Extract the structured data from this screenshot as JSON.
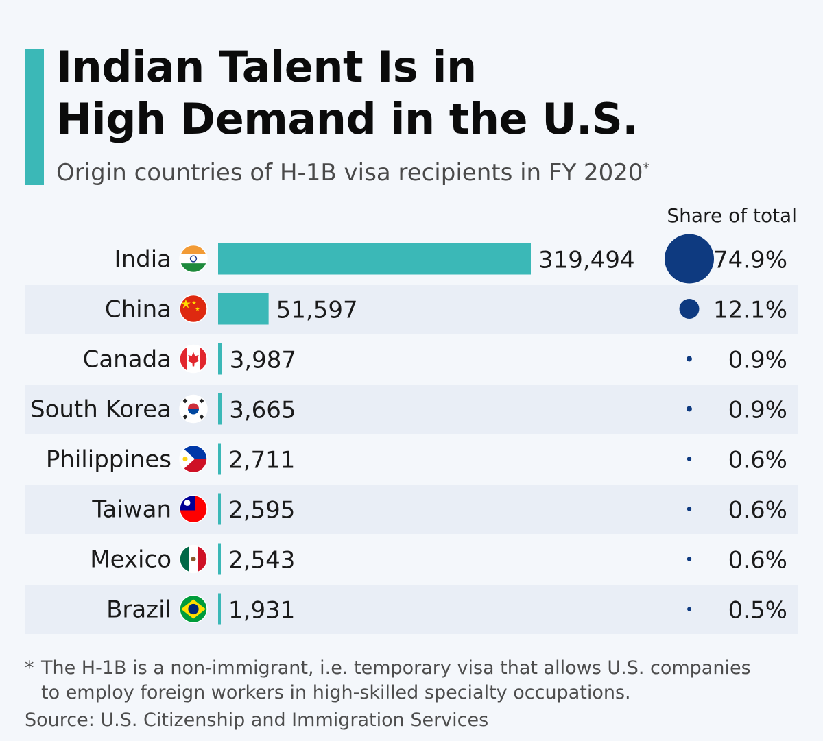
{
  "title_line1": "Indian Talent Is in",
  "title_line2": "High Demand in the U.S.",
  "subtitle": "Origin countries of H-1B visa recipients in FY 2020",
  "subtitle_mark": "*",
  "share_header": "Share of total",
  "footnote_star": "*",
  "footnote_line1": "The H-1B is a non-immigrant, i.e. temporary visa that allows U.S. companies",
  "footnote_line2": "to employ foreign workers in high-skilled specialty occupations.",
  "source": "Source: U.S. Citizenship and Immigration Services",
  "colors": {
    "accent": "#3bb8b7",
    "bar": "#3bb8b7",
    "bubble": "#0e3a80",
    "stripe": "#e9eef6"
  },
  "chart_data": {
    "type": "bar",
    "orientation": "horizontal",
    "title": "Indian Talent Is in High Demand in the U.S.",
    "subtitle": "Origin countries of H-1B visa recipients in FY 2020",
    "categories": [
      "India",
      "China",
      "Canada",
      "South Korea",
      "Philippines",
      "Taiwan",
      "Mexico",
      "Brazil"
    ],
    "flags": [
      "india-flag-icon",
      "china-flag-icon",
      "canada-flag-icon",
      "south-korea-flag-icon",
      "philippines-flag-icon",
      "taiwan-flag-icon",
      "mexico-flag-icon",
      "brazil-flag-icon"
    ],
    "values": [
      319494,
      51597,
      3987,
      3665,
      2711,
      2595,
      2543,
      1931
    ],
    "value_labels": [
      "319,494",
      "51,597",
      "3,987",
      "3,665",
      "2,711",
      "2,595",
      "2,543",
      "1,931"
    ],
    "share_values": [
      74.9,
      12.1,
      0.9,
      0.9,
      0.6,
      0.6,
      0.6,
      0.5
    ],
    "share_labels": [
      "74.9%",
      "12.1%",
      "0.9%",
      "0.9%",
      "0.6%",
      "0.6%",
      "0.6%",
      "0.5%"
    ],
    "xlim": [
      0,
      319494
    ]
  }
}
